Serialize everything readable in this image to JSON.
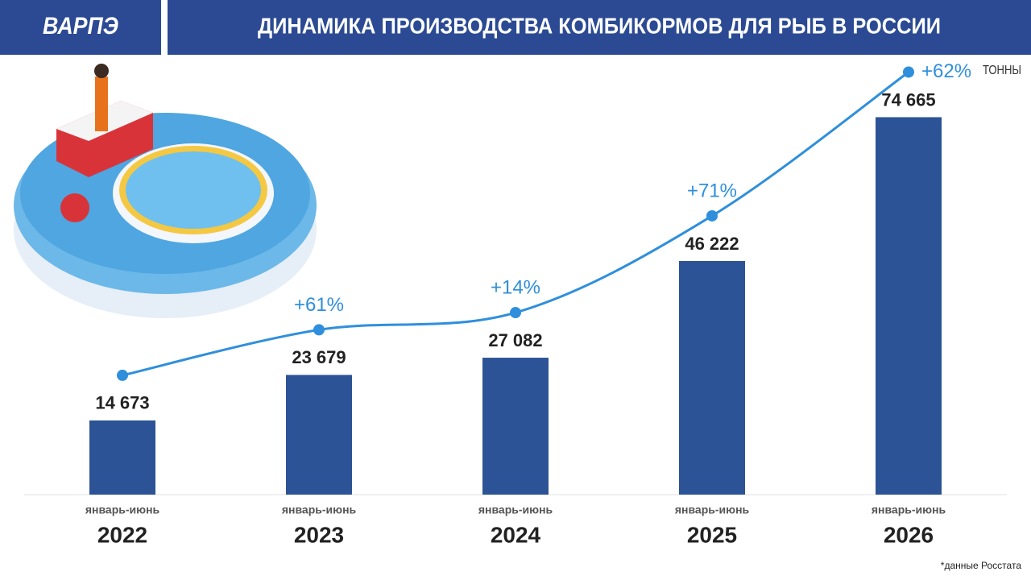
{
  "header": {
    "logo": "ВАРПЭ",
    "title": "ДИНАМИКА ПРОИЗВОДСТВА КОМБИКОРМОВ ДЛЯ РЫБ В РОССИИ"
  },
  "chart_data": {
    "type": "bar",
    "unit_label": "ТОННЫ",
    "category_prefix": "январь-июнь",
    "categories": [
      "2022",
      "2023",
      "2024",
      "2025",
      "2026"
    ],
    "values": [
      14673,
      23679,
      27082,
      46222,
      74665
    ],
    "value_labels": [
      "14 673",
      "23 679",
      "27 082",
      "46 222",
      "74 665"
    ],
    "color": "#2c5396",
    "ylim": [
      0,
      80000
    ],
    "growth": {
      "color": "#2f8fdc",
      "values": [
        null,
        61,
        14,
        71,
        62
      ],
      "value_labels": [
        null,
        "+61%",
        "+14%",
        "+71%",
        "+62%"
      ]
    },
    "source_note": "*данные Росстата"
  }
}
